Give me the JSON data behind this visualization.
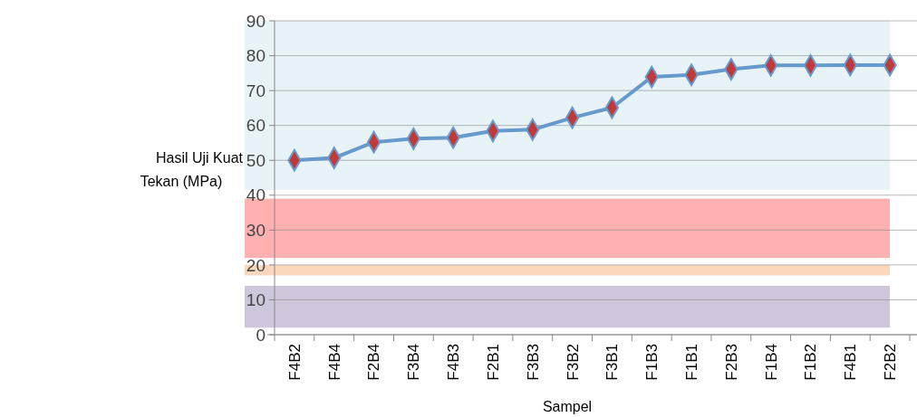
{
  "chart_data": {
    "type": "line",
    "xlabel": "Sampel",
    "ylabel": "Hasil Uji Kuat Tekan  (MPa)",
    "categories": [
      "F4B2",
      "F4B4",
      "F2B4",
      "F3B4",
      "F4B3",
      "F2B1",
      "F3B3",
      "F3B2",
      "F3B1",
      "F1B3",
      "F1B1",
      "F2B3",
      "F1B4",
      "F1B2",
      "F4B1",
      "F2B2"
    ],
    "series": [
      {
        "color": "#6699cc",
        "values": [
          50,
          50.7,
          55.2,
          56.2,
          56.5,
          58.4,
          58.8,
          62.2,
          65.1,
          73.9,
          74.5,
          76.1,
          77.2,
          77.2,
          77.3,
          77.3
        ]
      }
    ],
    "marker": "diamond",
    "line_style": "solid",
    "ylim": [
      0,
      90
    ],
    "yticks": [
      0,
      10,
      20,
      30,
      40,
      50,
      60,
      70,
      80,
      90
    ],
    "grid": "y",
    "bands": [
      {
        "axis": "y",
        "from": 41.5,
        "to": 90,
        "color": "#e8f3f8"
      },
      {
        "axis": "y",
        "from": 22,
        "to": 39,
        "color": "#ffb0b0"
      },
      {
        "axis": "y",
        "from": 17,
        "to": 20,
        "color": "#fbd8bd"
      },
      {
        "axis": "y",
        "from": 2,
        "to": 14,
        "color": "#d0c6dc"
      }
    ]
  }
}
